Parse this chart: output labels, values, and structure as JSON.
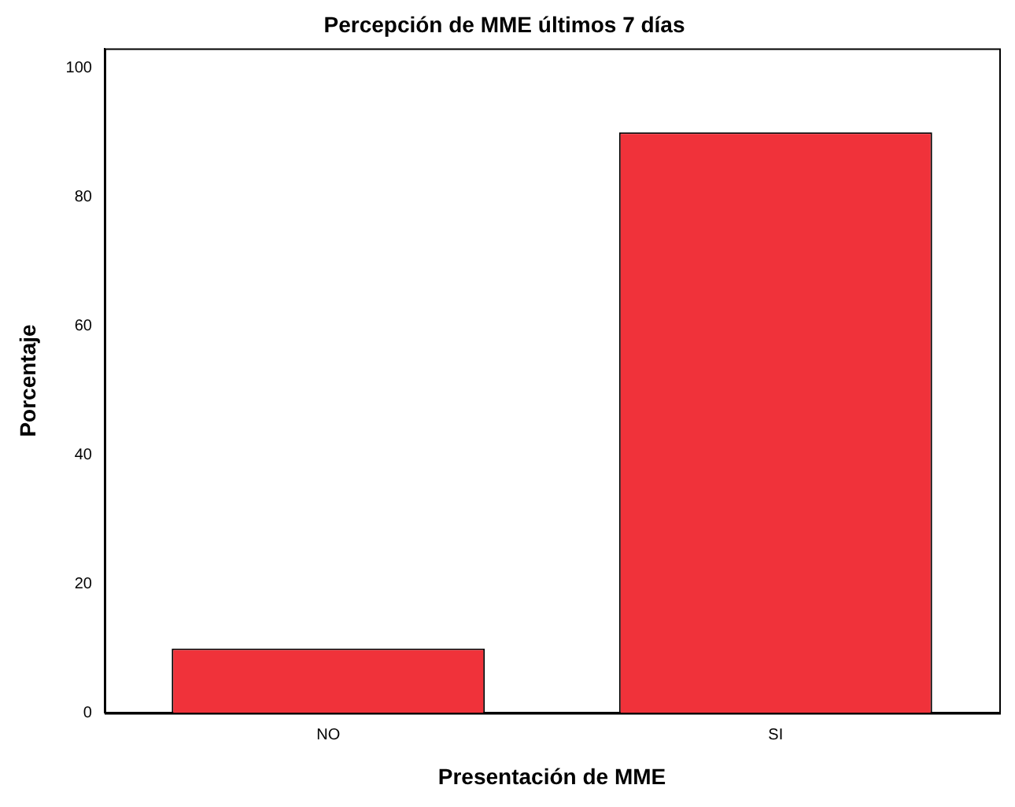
{
  "chart_data": {
    "type": "bar",
    "title": "Percepción de MME últimos 7 días",
    "xlabel": "Presentación de MME",
    "ylabel": "Porcentaje",
    "categories": [
      "NO",
      "SI"
    ],
    "values": [
      10,
      90
    ],
    "color": "#f0323a",
    "ylim": [
      0,
      103
    ],
    "yticks": [
      0,
      20,
      40,
      60,
      80,
      100
    ],
    "grid": false,
    "legend": false
  }
}
